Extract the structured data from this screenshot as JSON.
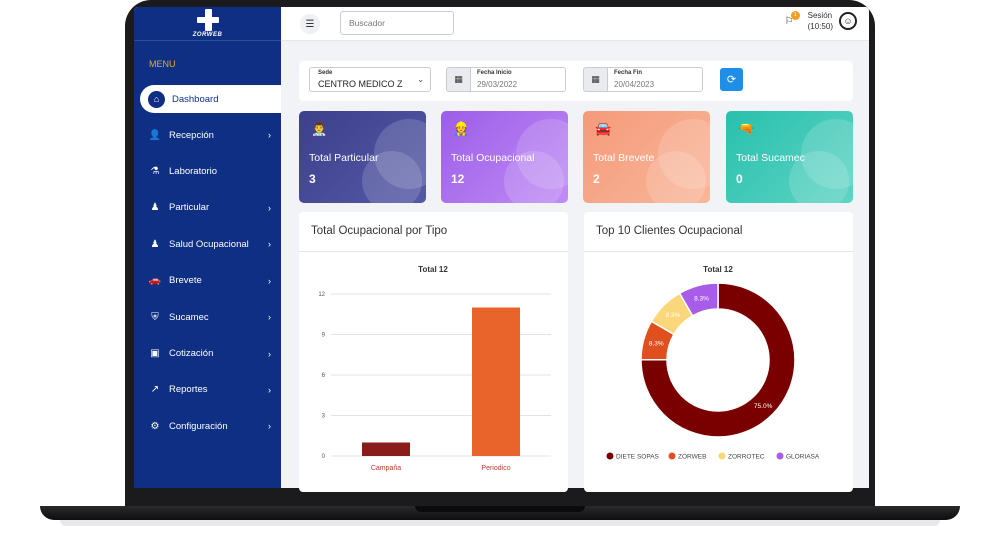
{
  "app": {
    "logo_text": "ZORWEB",
    "menu_title": "MENU"
  },
  "sidebar": {
    "items": [
      {
        "label": "Dashboard",
        "icon": "home-icon",
        "active": true,
        "has_submenu": false
      },
      {
        "label": "Recepción",
        "icon": "user-plus-icon",
        "active": false,
        "has_submenu": true
      },
      {
        "label": "Laboratorio",
        "icon": "microscope-icon",
        "active": false,
        "has_submenu": false
      },
      {
        "label": "Particular",
        "icon": "user-doctor-icon",
        "active": false,
        "has_submenu": true
      },
      {
        "label": "Salud Ocupacional",
        "icon": "user-worker-icon",
        "active": false,
        "has_submenu": true
      },
      {
        "label": "Brevete",
        "icon": "car-icon",
        "active": false,
        "has_submenu": true
      },
      {
        "label": "Sucamec",
        "icon": "shield-icon",
        "active": false,
        "has_submenu": true
      },
      {
        "label": "Cotización",
        "icon": "monitor-icon",
        "active": false,
        "has_submenu": true
      },
      {
        "label": "Reportes",
        "icon": "chart-line-icon",
        "active": false,
        "has_submenu": true
      },
      {
        "label": "Configuración",
        "icon": "gear-icon",
        "active": false,
        "has_submenu": true
      }
    ]
  },
  "topbar": {
    "search_placeholder": "Buscador",
    "session_label": "Sesión",
    "session_time": "(10:50)",
    "notification_count": "1"
  },
  "filters": {
    "sede_label": "Sede",
    "sede_value": "CENTRO MEDICO Z",
    "fecha_inicio_label": "Fecha Inicio",
    "fecha_inicio_value": "29/03/2022",
    "fecha_fin_label": "Fecha Fin",
    "fecha_fin_value": "20/04/2023"
  },
  "kpis": [
    {
      "label": "Total Particular",
      "value": "3",
      "color_from": "#3b3f8c",
      "color_to": "#565aa6",
      "icon": "doctor-icon"
    },
    {
      "label": "Total Ocupacional",
      "value": "12",
      "color_from": "#9c5de8",
      "color_to": "#c08cf5",
      "icon": "worker-icon"
    },
    {
      "label": "Total Brevete",
      "value": "2",
      "color_from": "#f59a7a",
      "color_to": "#f8b79a",
      "icon": "car-icon"
    },
    {
      "label": "Total Sucamec",
      "value": "0",
      "color_from": "#28c0ad",
      "color_to": "#5fd4c4",
      "icon": "gun-icon"
    }
  ],
  "panels": {
    "left_title": "Total Ocupacional por Tipo",
    "right_title": "Top 10 Clientes Ocupacional"
  },
  "chart_data": [
    {
      "type": "bar",
      "title": "Total 12",
      "categories": [
        "Campaña",
        "Periodico"
      ],
      "values": [
        1,
        11
      ],
      "colors": [
        "#8b1a1a",
        "#e8642a"
      ],
      "ylim": [
        0,
        12
      ],
      "yticks": [
        0,
        3,
        6,
        9,
        12
      ],
      "grid": true
    },
    {
      "type": "pie",
      "donut": true,
      "title": "Total 12",
      "labels": [
        "DIETE SOPAS",
        "ZORWEB",
        "ZORROTEC",
        "GLORIASA"
      ],
      "values": [
        75.0,
        8.3,
        8.3,
        8.3
      ],
      "value_labels": [
        "75.0%",
        "8.3%",
        "8.3%",
        "8.3%"
      ],
      "colors": [
        "#7a0000",
        "#e0501e",
        "#f9d77a",
        "#a85de8"
      ],
      "legend_position": "bottom"
    }
  ]
}
